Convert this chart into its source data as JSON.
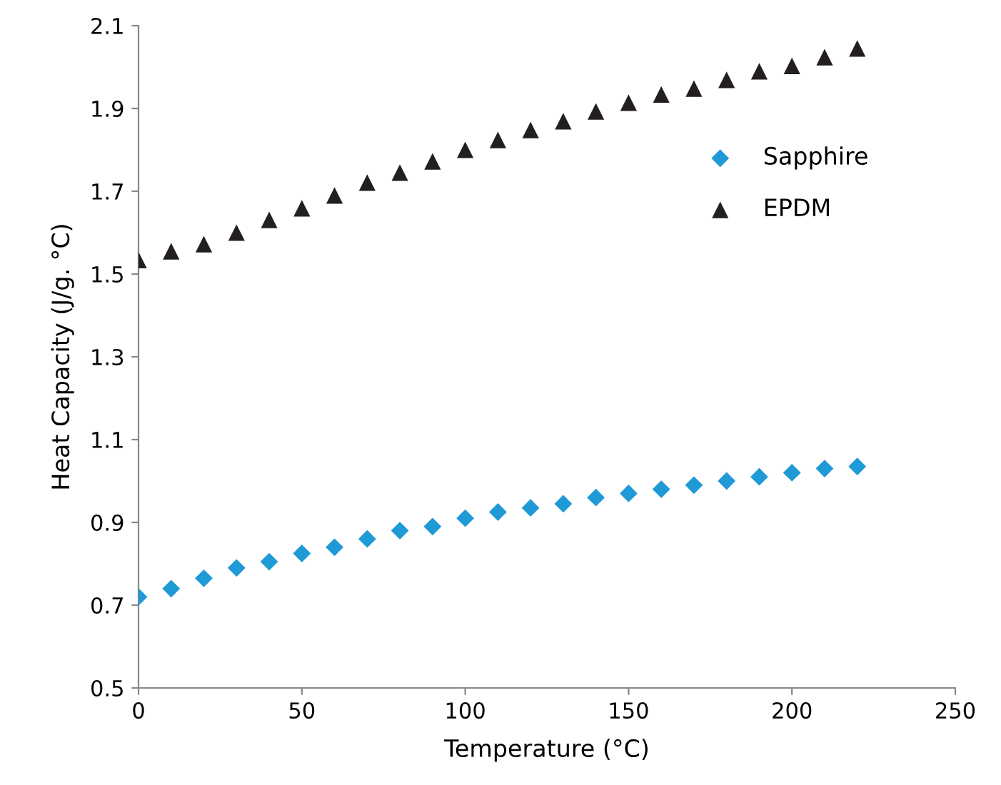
{
  "chart_data": {
    "type": "scatter",
    "xlabel": "Temperature (°C)",
    "ylabel": "Heat Capacity (J/g. °C)",
    "x": [
      0,
      10,
      20,
      30,
      40,
      50,
      60,
      70,
      80,
      90,
      100,
      110,
      120,
      130,
      140,
      150,
      160,
      170,
      180,
      190,
      200,
      210,
      220
    ],
    "series": [
      {
        "name": "Sapphire",
        "color": "#1f9ad6",
        "marker": "diamond",
        "values": [
          0.72,
          0.74,
          0.765,
          0.79,
          0.805,
          0.825,
          0.84,
          0.86,
          0.88,
          0.89,
          0.91,
          0.925,
          0.935,
          0.945,
          0.96,
          0.97,
          0.98,
          0.99,
          1.0,
          1.01,
          1.02,
          1.03,
          1.035
        ]
      },
      {
        "name": "EPDM",
        "color": "#231f20",
        "marker": "triangle",
        "values": [
          1.534,
          1.555,
          1.572,
          1.6,
          1.631,
          1.659,
          1.69,
          1.721,
          1.745,
          1.772,
          1.8,
          1.824,
          1.848,
          1.869,
          1.893,
          1.914,
          1.934,
          1.948,
          1.969,
          1.99,
          2.003,
          2.024,
          2.045
        ]
      }
    ],
    "xlim": [
      0,
      250
    ],
    "xticks": [
      0,
      50,
      100,
      150,
      200,
      250
    ],
    "ylim": [
      0.5,
      2.1
    ],
    "yticks": [
      {
        "value": 0.5,
        "label": "0.5"
      },
      {
        "value": 0.7,
        "label": "0.7"
      },
      {
        "value": 0.9,
        "label": "0.9"
      },
      {
        "value": 1.1,
        "label": "1.1"
      },
      {
        "value": 1.3,
        "label": "1.3"
      },
      {
        "value": 1.5,
        "label": "1.5"
      },
      {
        "value": 1.7,
        "label": "1.7"
      },
      {
        "value": 1.9,
        "label": "1.9"
      },
      {
        "value": 2.1,
        "label": "2.1"
      }
    ],
    "grid": false,
    "legend": "top right"
  }
}
